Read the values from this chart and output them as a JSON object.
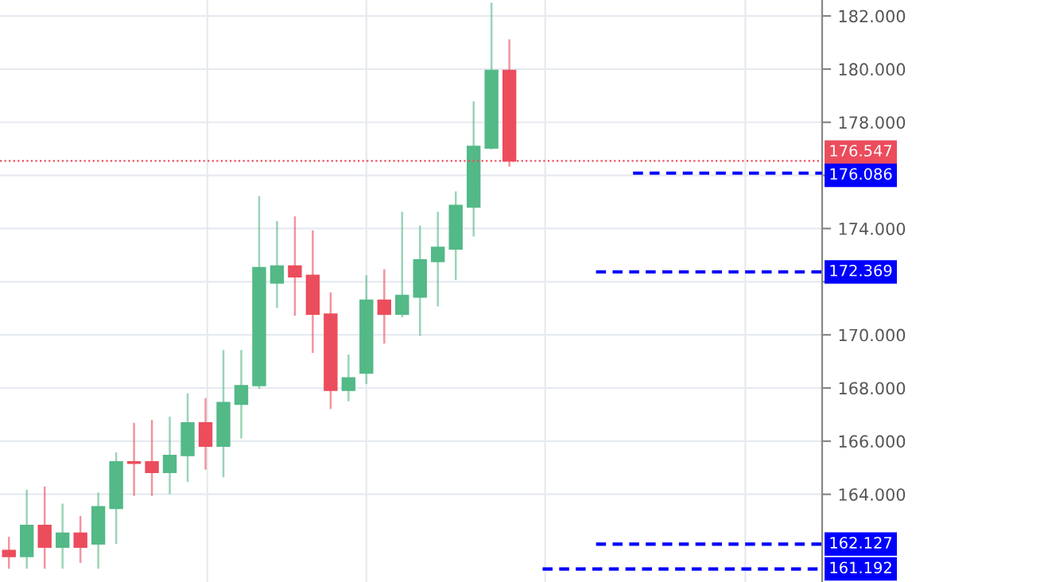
{
  "chart_data": {
    "type": "candlestick",
    "categories": [
      null,
      null,
      null,
      null,
      null,
      null,
      null,
      null,
      null,
      null,
      null,
      null,
      null,
      null,
      null,
      null,
      null,
      null,
      null,
      null,
      null,
      null,
      null,
      null,
      null,
      null,
      null,
      null,
      null,
      null,
      null,
      null,
      null,
      null,
      null,
      null,
      null,
      null,
      null,
      null,
      null,
      null,
      null,
      null,
      null,
      null
    ],
    "ohlc": [
      [
        161.89,
        162.4,
        161.2,
        161.66
      ],
      [
        161.66,
        164.17,
        161.2,
        162.83
      ],
      [
        162.83,
        164.29,
        161.2,
        162.01
      ],
      [
        162.01,
        163.65,
        161.2,
        162.54
      ],
      [
        162.54,
        163.18,
        161.42,
        162.01
      ],
      [
        162.13,
        164.06,
        161.2,
        163.53
      ],
      [
        163.47,
        165.58,
        162.13,
        165.22
      ],
      [
        165.22,
        166.69,
        163.94,
        165.17
      ],
      [
        165.22,
        166.8,
        163.94,
        164.82
      ],
      [
        164.82,
        166.92,
        164.0,
        165.46
      ],
      [
        165.46,
        167.8,
        164.47,
        166.69
      ],
      [
        166.69,
        167.62,
        164.93,
        165.81
      ],
      [
        165.81,
        169.43,
        164.64,
        167.45
      ],
      [
        167.39,
        169.43,
        166.1,
        168.09
      ],
      [
        168.09,
        175.22,
        167.97,
        172.53
      ],
      [
        171.95,
        174.28,
        171.01,
        172.59
      ],
      [
        172.59,
        174.46,
        170.72,
        172.18
      ],
      [
        172.24,
        173.93,
        169.32,
        170.78
      ],
      [
        170.78,
        171.6,
        167.21,
        167.91
      ],
      [
        167.91,
        169.26,
        167.5,
        168.38
      ],
      [
        168.56,
        172.24,
        168.15,
        171.3
      ],
      [
        171.3,
        172.47,
        169.67,
        170.78
      ],
      [
        170.78,
        174.63,
        170.66,
        171.48
      ],
      [
        171.42,
        174.11,
        169.96,
        172.82
      ],
      [
        172.76,
        174.63,
        171.07,
        173.29
      ],
      [
        173.23,
        175.4,
        172.06,
        174.87
      ],
      [
        174.81,
        178.79,
        173.7,
        177.09
      ],
      [
        177.03,
        182.5,
        176.97,
        179.95
      ],
      [
        179.95,
        181.12,
        176.33,
        176.547
      ],
      null,
      null,
      null,
      null,
      null,
      null,
      null,
      null,
      null,
      null,
      null,
      null,
      null,
      null,
      null,
      null,
      null
    ],
    "colors": [
      "#eb4d5c",
      "#53b987",
      "#eb4d5c",
      "#53b987",
      "#eb4d5c",
      "#53b987",
      "#53b987",
      "#eb4d5c",
      "#eb4d5c",
      "#53b987",
      "#53b987",
      "#eb4d5c",
      "#53b987",
      "#53b987",
      "#53b987",
      "#53b987",
      "#eb4d5c",
      "#eb4d5c",
      "#eb4d5c",
      "#53b987",
      "#53b987",
      "#eb4d5c",
      "#53b987",
      "#53b987",
      "#53b987",
      "#53b987",
      "#53b987",
      "#53b987",
      "#eb4d5c",
      null,
      null,
      null,
      null,
      null,
      null,
      null,
      null,
      null,
      null,
      null,
      null,
      null,
      null,
      null,
      null,
      null
    ],
    "ylim": [
      160.7,
      182.6
    ],
    "yticks": [
      {
        "value": 164,
        "label": "164.000"
      },
      {
        "value": 166,
        "label": "166.000"
      },
      {
        "value": 168,
        "label": "168.000"
      },
      {
        "value": 170,
        "label": "170.000"
      },
      {
        "value": 172,
        "label": null
      },
      {
        "value": 174,
        "label": "174.000"
      },
      {
        "value": 176,
        "label": null
      },
      {
        "value": 178,
        "label": "178.000"
      },
      {
        "value": 180,
        "label": "180.000"
      },
      {
        "value": 182,
        "label": "182.000"
      }
    ],
    "grid": true,
    "ref_lines": [
      {
        "axis": "y",
        "value": 176.547,
        "label": "176.547",
        "color": "#eb4d5c",
        "line_style": "dotted"
      },
      {
        "axis": "y",
        "value": 176.086,
        "label": "176.086",
        "color": "#0000ff",
        "line_style": "dashed"
      },
      {
        "axis": "y",
        "value": 172.369,
        "label": "172.369",
        "color": "#0000ff",
        "line_style": "dashed"
      },
      {
        "axis": "y",
        "value": 162.127,
        "label": "162.127",
        "color": "#0000ff",
        "line_style": "dashed"
      },
      {
        "axis": "y",
        "value": 161.192,
        "label": "161.192",
        "color": "#0000ff",
        "line_style": "dashed"
      }
    ]
  }
}
